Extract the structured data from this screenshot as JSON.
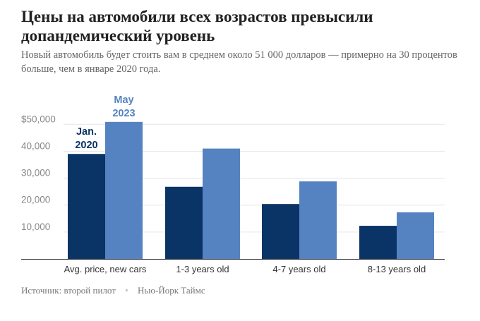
{
  "header": {
    "title": "Цены на автомобили всех возрастов превысили допандемический уровень",
    "subtitle": "Новый автомобиль будет стоить вам в среднем около 51 000 долларов — примерно на 30 процентов больше, чем в январе 2020 года."
  },
  "footer": {
    "source": "Источник: второй пилот",
    "publisher": "Нью-Йорк Таймс"
  },
  "colors": {
    "series_jan2020": "#0b3466",
    "series_may2023": "#5583c1",
    "grid": "#e6e6e6",
    "axis": "#333333"
  },
  "chart_data": {
    "type": "bar",
    "title": "Цены на автомобили всех возрастов превысили допандемический уровень",
    "subtitle": "Новый автомобиль будет стоить вам в среднем около 51 000 долларов — примерно на 30 процентов больше, чем в январе 2020 года.",
    "categories": [
      "Avg. price, new cars",
      "1-3 years old",
      "4-7 years old",
      "8-13 years old"
    ],
    "series": [
      {
        "name": "Jan. 2020",
        "label_lines": [
          "Jan.",
          "2020"
        ],
        "values": [
          39000,
          26800,
          20400,
          12300
        ]
      },
      {
        "name": "May 2023",
        "label_lines": [
          "May",
          "2023"
        ],
        "values": [
          50900,
          41000,
          28800,
          17300
        ]
      }
    ],
    "yticks": [
      10000,
      20000,
      30000,
      40000,
      50000
    ],
    "ytick_labels": [
      "10,000",
      "20,000",
      "30,000",
      "40,000",
      "$50,000"
    ],
    "ylim": [
      0,
      55000
    ],
    "grid": true,
    "legend": "direct labels above first category"
  }
}
